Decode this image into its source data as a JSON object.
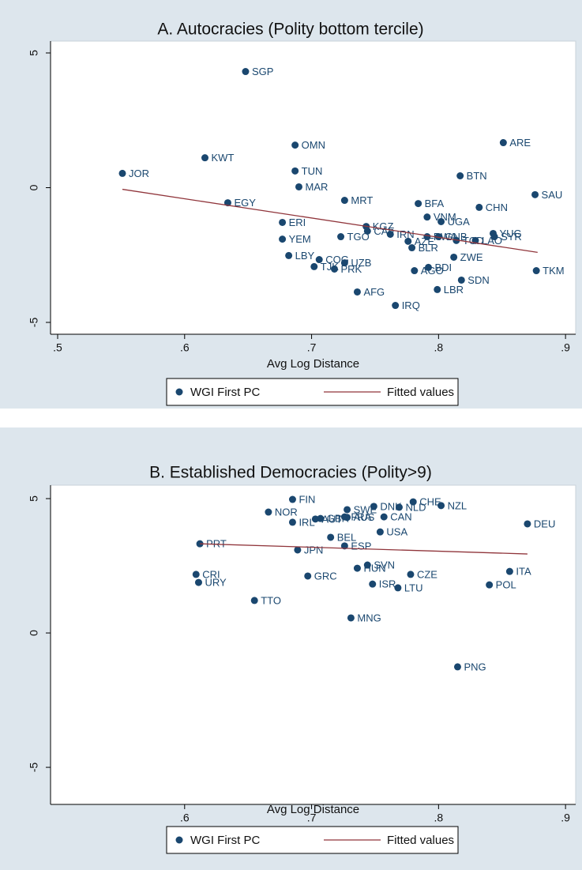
{
  "chart_data": [
    {
      "type": "scatter",
      "title": "A. Autocracies (Polity bottom tercile)",
      "xlabel": "Avg Log Distance",
      "xlim": [
        0.4944,
        0.908
      ],
      "ylim": [
        -5.44,
        5.44
      ],
      "xticks": [
        {
          "value": 0.5,
          "label": ".5"
        },
        {
          "value": 0.6,
          "label": ".6"
        },
        {
          "value": 0.7,
          "label": ".7"
        },
        {
          "value": 0.8,
          "label": ".8"
        },
        {
          "value": 0.9,
          "label": ".9"
        }
      ],
      "yticks": [
        -5,
        0,
        5
      ],
      "grid": false,
      "series": [
        {
          "name": "WGI First PC",
          "color": "#1a476f",
          "labels": [
            "SGP",
            "KWT",
            "JOR",
            "OMN",
            "TUN",
            "MAR",
            "EGY",
            "ERI",
            "YEM",
            "LBY",
            "COG",
            "TJK",
            "PRK",
            "UZB",
            "MRT",
            "TGO",
            "KGZ",
            "CAF",
            "IRN",
            "AZE",
            "BLR",
            "RWA",
            "GNB",
            "TCD",
            "LAO",
            "YUG",
            "SYR",
            "VNM",
            "UGA",
            "BFA",
            "CHN",
            "SAU",
            "ARE",
            "BTN",
            "ZWE",
            "AGO",
            "BDI",
            "SDN",
            "LBR",
            "TKM",
            "AFG",
            "IRQ"
          ],
          "x": [
            0.648,
            0.616,
            0.551,
            0.687,
            0.687,
            0.69,
            0.634,
            0.677,
            0.677,
            0.682,
            0.706,
            0.702,
            0.718,
            0.726,
            0.726,
            0.723,
            0.743,
            0.744,
            0.762,
            0.776,
            0.779,
            0.791,
            0.8,
            0.814,
            0.829,
            0.843,
            0.844,
            0.791,
            0.802,
            0.784,
            0.832,
            0.876,
            0.851,
            0.817,
            0.812,
            0.781,
            0.792,
            0.818,
            0.799,
            0.877,
            0.736,
            0.766
          ],
          "values": [
            4.31,
            1.11,
            0.53,
            1.58,
            0.62,
            0.03,
            -0.56,
            -1.29,
            -1.91,
            -2.52,
            -2.67,
            -2.93,
            -3.02,
            -2.79,
            -0.47,
            -1.82,
            -1.44,
            -1.61,
            -1.73,
            -1.99,
            -2.23,
            -1.82,
            -1.82,
            -1.96,
            -1.96,
            -1.7,
            -1.82,
            -1.09,
            -1.26,
            -0.59,
            -0.73,
            -0.26,
            1.67,
            0.44,
            -2.58,
            -3.08,
            -2.96,
            -3.43,
            -3.78,
            -3.08,
            -3.87,
            -4.37
          ]
        },
        {
          "name": "Fitted values",
          "color": "#90353b",
          "type": "line",
          "x": [
            0.551,
            0.878
          ],
          "values": [
            -0.06,
            -2.4
          ]
        }
      ]
    },
    {
      "type": "scatter",
      "title": "B. Established Democracies (Polity>9)",
      "xlabel": "Avg Log Distance",
      "xlim": [
        0.4944,
        0.908
      ],
      "ylim": [
        -6.38,
        5.5
      ],
      "xticks": [
        {
          "value": 0.6,
          "label": ".6"
        },
        {
          "value": 0.7,
          "label": ".7"
        },
        {
          "value": 0.8,
          "label": ".8"
        },
        {
          "value": 0.9,
          "label": ".9"
        }
      ],
      "yticks": [
        -5,
        0,
        5
      ],
      "grid": false,
      "series": [
        {
          "name": "WGI First PC",
          "color": "#1a476f",
          "labels": [
            "FIN",
            "NOR",
            "SWE",
            "DNK",
            "NLD",
            "CHE",
            "NZL",
            "IRL",
            "AUT",
            "GBR",
            "FRA",
            "AUS",
            "CAN",
            "USA",
            "DEU",
            "BEL",
            "PRT",
            "ESP",
            "JPN",
            "SVN",
            "HUN",
            "CRI",
            "URY",
            "GRC",
            "CZE",
            "ITA",
            "ISR",
            "LTU",
            "POL",
            "TTO",
            "MNG",
            "PNG"
          ],
          "x": [
            0.685,
            0.666,
            0.728,
            0.749,
            0.769,
            0.78,
            0.802,
            0.685,
            0.703,
            0.707,
            0.726,
            0.728,
            0.757,
            0.754,
            0.87,
            0.715,
            0.612,
            0.726,
            0.689,
            0.744,
            0.736,
            0.609,
            0.611,
            0.697,
            0.778,
            0.856,
            0.748,
            0.768,
            0.84,
            0.655,
            0.731,
            0.815
          ],
          "values": [
            4.97,
            4.5,
            4.59,
            4.71,
            4.68,
            4.88,
            4.74,
            4.12,
            4.24,
            4.26,
            4.32,
            4.3,
            4.32,
            3.76,
            4.06,
            3.56,
            3.32,
            3.24,
            3.09,
            2.53,
            2.41,
            2.18,
            1.88,
            2.12,
            2.18,
            2.29,
            1.82,
            1.68,
            1.79,
            1.21,
            0.56,
            -1.26
          ]
        },
        {
          "name": "Fitted values",
          "color": "#90353b",
          "type": "line",
          "x": [
            0.612,
            0.87
          ],
          "values": [
            3.32,
            2.94
          ]
        }
      ]
    }
  ]
}
